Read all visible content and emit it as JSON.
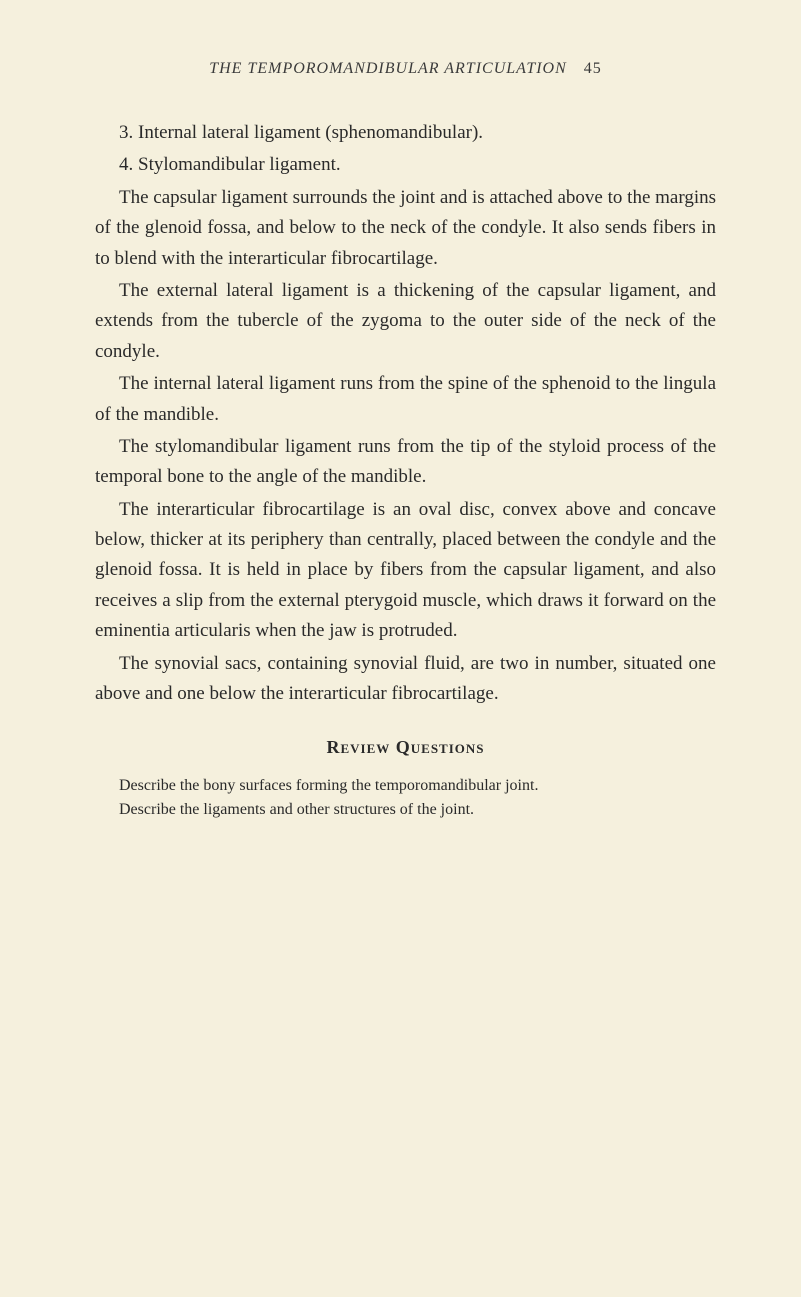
{
  "header": {
    "title": "THE TEMPOROMANDIBULAR ARTICULATION",
    "page": "45"
  },
  "paragraphs": {
    "p1": "3. Internal lateral ligament (sphenomandibular).",
    "p2": "4. Stylomandibular ligament.",
    "p3": "The capsular ligament surrounds the joint and is attached above to the margins of the glenoid fossa, and below to the neck of the condyle. It also sends fibers in to blend with the interarticular fibrocartilage.",
    "p4": "The external lateral ligament is a thickening of the capsular ligament, and extends from the tubercle of the zygoma to the outer side of the neck of the condyle.",
    "p5": "The internal lateral ligament runs from the spine of the sphenoid to the lingula of the mandible.",
    "p6": "The stylomandibular ligament runs from the tip of the styloid process of the temporal bone to the angle of the mandible.",
    "p7": "The interarticular fibrocartilage is an oval disc, convex above and concave below, thicker at its periphery than centrally, placed between the condyle and the glenoid fossa. It is held in place by fibers from the capsular ligament, and also receives a slip from the external pterygoid muscle, which draws it forward on the eminentia articularis when the jaw is protruded.",
    "p8": "The synovial sacs, containing synovial fluid, are two in number, situated one above and one below the interarticular fibrocartilage."
  },
  "review": {
    "title": "Review Questions",
    "q1": "Describe the bony surfaces forming the temporomandibular joint.",
    "q2": "Describe the ligaments and other structures of the joint."
  },
  "colors": {
    "background": "#f5f0dd",
    "text": "#2a2a2a"
  }
}
